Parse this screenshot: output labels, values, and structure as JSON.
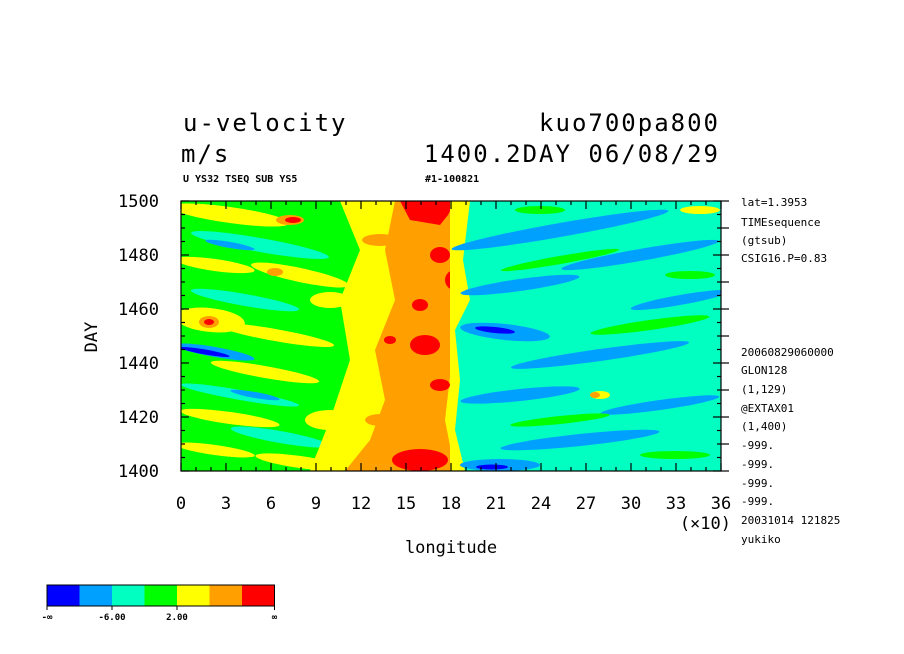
{
  "header": {
    "title_left": "u-velocity",
    "title_right": "kuo700pa800",
    "unit": "m/s",
    "time_stamp": "1400.2DAY 06/08/29",
    "sub_left": "U YS32 TSEQ SUB YS5",
    "sub_right": "#1-100821"
  },
  "chart_data": {
    "type": "heatmap",
    "xlabel": "longitude",
    "ylabel": "DAY",
    "x_scale_label": "(×10)",
    "xlim": [
      0,
      36
    ],
    "ylim": [
      1400,
      1500
    ],
    "x_ticks": [
      "0",
      "3",
      "6",
      "9",
      "12",
      "15",
      "18",
      "21",
      "24",
      "27",
      "30",
      "33",
      "36"
    ],
    "y_ticks": [
      "1400",
      "1420",
      "1440",
      "1460",
      "1480",
      "1500"
    ],
    "colorbar": {
      "colors": [
        "#0000ff",
        "#00a0ff",
        "#00ffc0",
        "#00ff00",
        "#ffff00",
        "#ffa000",
        "#ff0000"
      ],
      "labels": [
        "-∞",
        "-6.00",
        "2.00",
        "∞"
      ]
    }
  },
  "side_info": {
    "top": [
      "lat=1.3953",
      "TIMEsequence",
      "(gtsub)",
      "CSIG16.P=0.83"
    ],
    "bottom": [
      "20060829060000",
      "GLON128",
      "(1,129)",
      "@EXTAX01",
      "(1,400)",
      "-999.",
      "-999.",
      "-999.",
      "-999.",
      "20031014 121825",
      "yukiko"
    ]
  }
}
